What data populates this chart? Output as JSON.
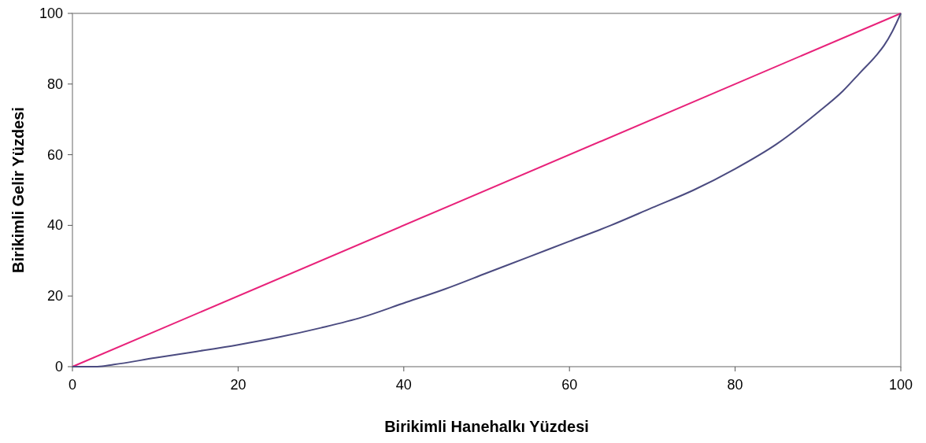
{
  "chart_data": {
    "type": "line",
    "xlabel": "Birikimli Hanehalkı Yüzdesi",
    "ylabel": "Birikimli Gelir Yüzdesi",
    "xlim": [
      0,
      100
    ],
    "ylim": [
      0,
      100
    ],
    "xticks": [
      0,
      20,
      40,
      60,
      80,
      100
    ],
    "yticks": [
      0,
      20,
      40,
      60,
      80,
      100
    ],
    "grid": false,
    "marker": "none",
    "line_style": "solid",
    "series": [
      {
        "color": "#e8227a",
        "x": [
          0,
          100
        ],
        "values": [
          0,
          100
        ]
      },
      {
        "color": "#4b4b80",
        "x": [
          0,
          3,
          5,
          10,
          15,
          20,
          25,
          30,
          35,
          40,
          45,
          50,
          55,
          60,
          65,
          70,
          75,
          80,
          85,
          90,
          93,
          95,
          97,
          98,
          99,
          100
        ],
        "values": [
          0,
          0,
          0.6,
          2.5,
          4.3,
          6.2,
          8.4,
          11,
          14,
          18,
          22,
          26.5,
          31,
          35.5,
          40,
          45,
          50,
          56,
          63,
          72,
          78,
          83,
          88,
          91,
          95,
          100
        ]
      }
    ]
  }
}
